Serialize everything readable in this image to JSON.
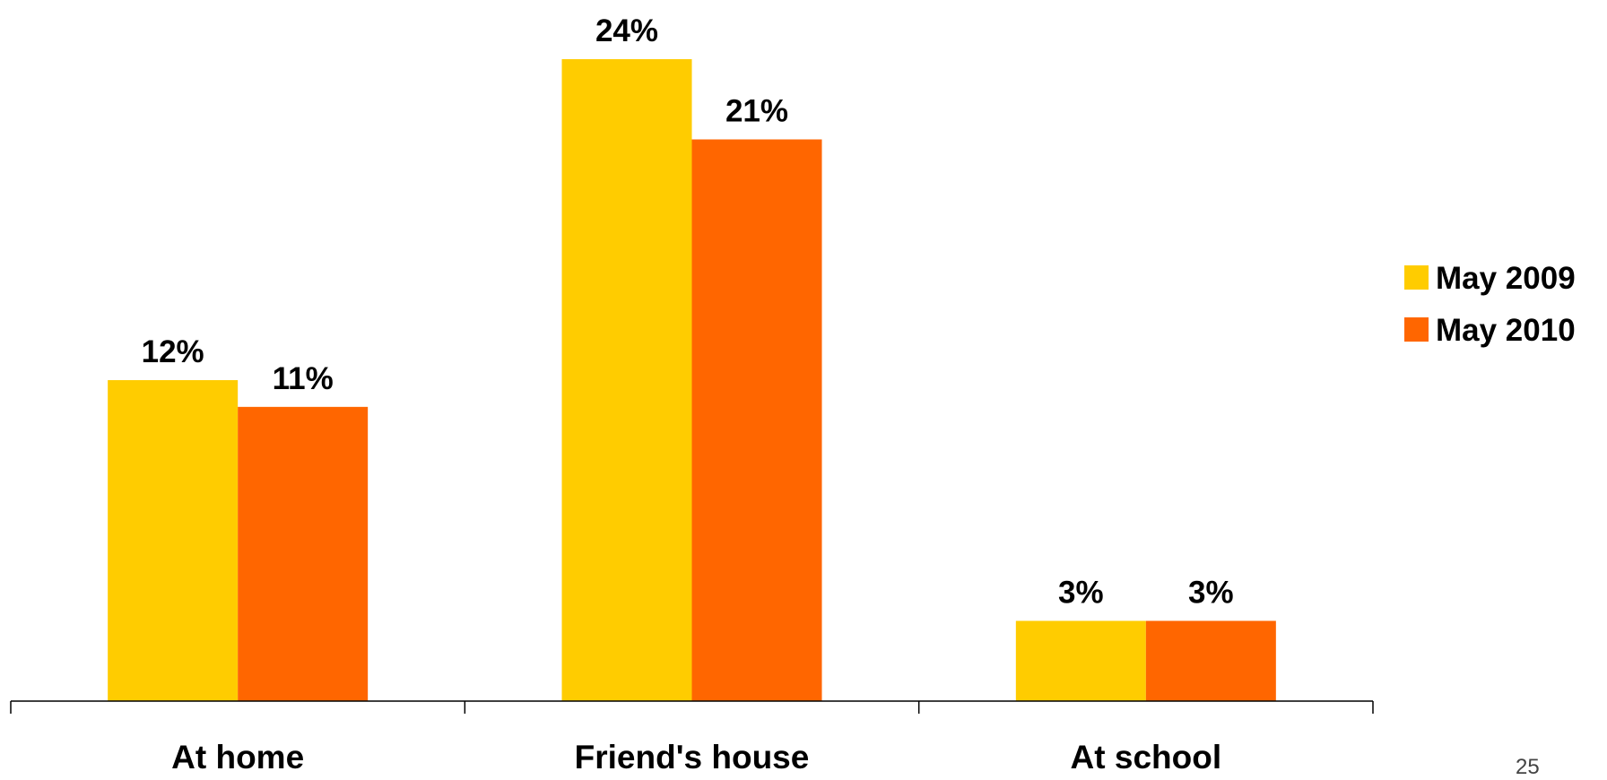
{
  "chart_data": {
    "type": "bar",
    "categories": [
      "At home",
      "Friend's house",
      "At school"
    ],
    "series": [
      {
        "name": "May 2009",
        "color": "#FFCC00",
        "values": [
          12,
          24,
          3
        ]
      },
      {
        "name": "May 2010",
        "color": "#FF6600",
        "values": [
          11,
          21,
          3
        ]
      }
    ],
    "data_labels": [
      [
        "12%",
        "24%",
        "3%"
      ],
      [
        "11%",
        "21%",
        "3%"
      ]
    ],
    "value_format": "percent",
    "ylim": [
      0,
      24
    ],
    "grid": false,
    "legend_position": "right"
  },
  "page_number": "25"
}
